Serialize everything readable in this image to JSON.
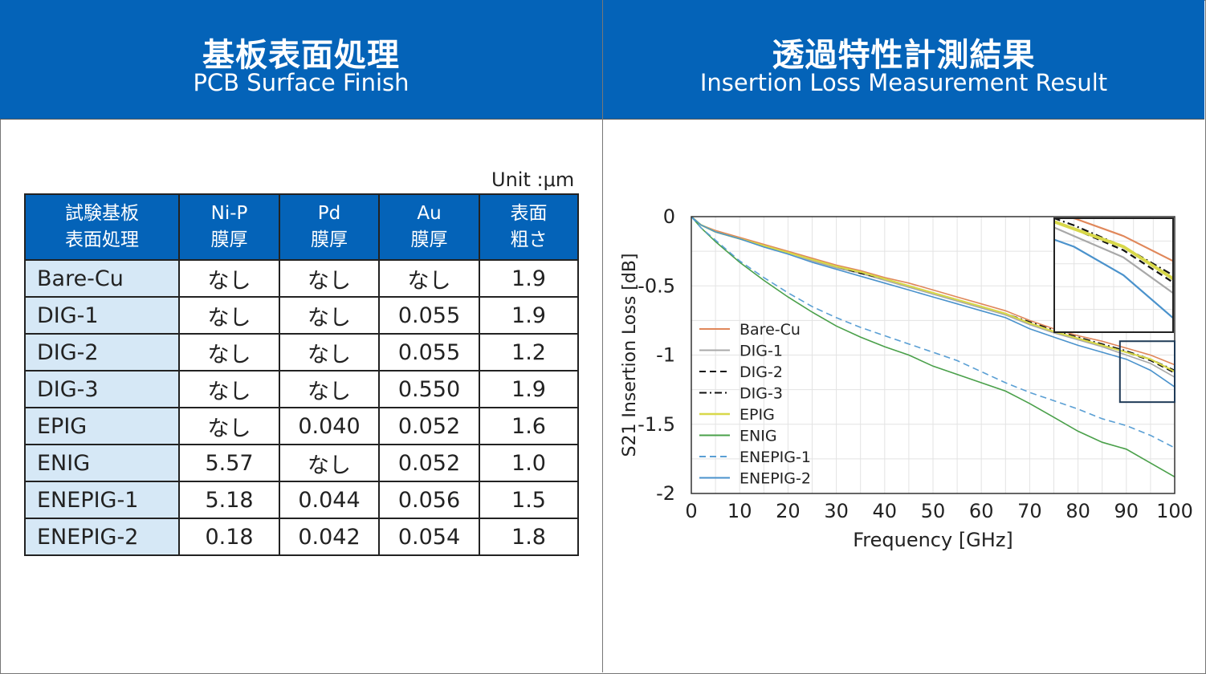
{
  "left_panel": {
    "title_jp": "基板表面処理",
    "title_en": "PCB Surface Finish",
    "unit": "Unit :μm",
    "table": {
      "headers": [
        "試験基板\n表面処理",
        "Ni-P\n膜厚",
        "Pd\n膜厚",
        "Au\n膜厚",
        "表面\n粗さ"
      ],
      "rows": [
        [
          "Bare-Cu",
          "なし",
          "なし",
          "なし",
          "1.9"
        ],
        [
          "DIG-1",
          "なし",
          "なし",
          "0.055",
          "1.9"
        ],
        [
          "DIG-2",
          "なし",
          "なし",
          "0.055",
          "1.2"
        ],
        [
          "DIG-3",
          "なし",
          "なし",
          "0.550",
          "1.9"
        ],
        [
          "EPIG",
          "なし",
          "0.040",
          "0.052",
          "1.6"
        ],
        [
          "ENIG",
          "5.57",
          "なし",
          "0.052",
          "1.0"
        ],
        [
          "ENEPIG-1",
          "5.18",
          "0.044",
          "0.056",
          "1.5"
        ],
        [
          "ENEPIG-2",
          "0.18",
          "0.042",
          "0.054",
          "1.8"
        ]
      ]
    }
  },
  "right_panel": {
    "title_jp": "透過特性計測結果",
    "title_en": "Insertion Loss Measurement Result"
  },
  "chart_data": [
    {
      "type": "table",
      "title": "",
      "columns": [
        "試験基板 表面処理",
        "Ni-P 膜厚",
        "Pd 膜厚",
        "Au 膜厚",
        "表面 粗さ"
      ],
      "rows": [
        [
          "Bare-Cu",
          "なし",
          "なし",
          "なし",
          "1.9"
        ],
        [
          "DIG-1",
          "なし",
          "なし",
          "0.055",
          "1.9"
        ],
        [
          "DIG-2",
          "なし",
          "なし",
          "0.055",
          "1.2"
        ],
        [
          "DIG-3",
          "なし",
          "なし",
          "0.550",
          "1.9"
        ],
        [
          "EPIG",
          "なし",
          "0.040",
          "0.052",
          "1.6"
        ],
        [
          "ENIG",
          "5.57",
          "なし",
          "0.052",
          "1.0"
        ],
        [
          "ENEPIG-1",
          "5.18",
          "0.044",
          "0.056",
          "1.5"
        ],
        [
          "ENEPIG-2",
          "0.18",
          "0.042",
          "0.054",
          "1.8"
        ]
      ]
    },
    {
      "type": "line",
      "title": "",
      "xlabel": "Frequency [GHz]",
      "ylabel": "S21 Insertion Loss [dB]",
      "xlim": [
        0,
        100
      ],
      "ylim": [
        -2,
        0
      ],
      "xticks": [
        0,
        10,
        20,
        30,
        40,
        50,
        60,
        70,
        80,
        90,
        100
      ],
      "yticks": [
        0,
        -0.5,
        -1,
        -1.5,
        -2
      ],
      "ytick_labels": [
        "0",
        "-0.5",
        "-1",
        "-1.5",
        "-2"
      ],
      "grid": true,
      "legend_position": "left",
      "x": [
        0,
        1,
        2,
        5,
        10,
        15,
        20,
        25,
        30,
        35,
        40,
        45,
        50,
        55,
        60,
        65,
        70,
        75,
        80,
        85,
        90,
        95,
        100
      ],
      "series": [
        {
          "name": "Bare-Cu",
          "color": "#e0875a",
          "dash": "solid",
          "values": [
            0,
            -0.03,
            -0.06,
            -0.1,
            -0.15,
            -0.2,
            -0.25,
            -0.3,
            -0.35,
            -0.39,
            -0.44,
            -0.48,
            -0.53,
            -0.58,
            -0.63,
            -0.68,
            -0.75,
            -0.81,
            -0.86,
            -0.9,
            -0.95,
            -1.0,
            -1.07
          ]
        },
        {
          "name": "DIG-1",
          "color": "#a8a8a8",
          "dash": "solid",
          "values": [
            0,
            -0.03,
            -0.06,
            -0.11,
            -0.16,
            -0.21,
            -0.26,
            -0.32,
            -0.37,
            -0.41,
            -0.46,
            -0.51,
            -0.56,
            -0.61,
            -0.66,
            -0.71,
            -0.78,
            -0.84,
            -0.89,
            -0.94,
            -1.0,
            -1.06,
            -1.16
          ]
        },
        {
          "name": "DIG-2",
          "color": "#111111",
          "dash": "dash",
          "values": [
            0,
            -0.03,
            -0.06,
            -0.11,
            -0.16,
            -0.21,
            -0.26,
            -0.31,
            -0.36,
            -0.41,
            -0.45,
            -0.5,
            -0.55,
            -0.6,
            -0.65,
            -0.7,
            -0.77,
            -0.83,
            -0.88,
            -0.93,
            -0.98,
            -1.04,
            -1.13
          ]
        },
        {
          "name": "DIG-3",
          "color": "#111111",
          "dash": "dashdot",
          "values": [
            0,
            -0.03,
            -0.06,
            -0.11,
            -0.16,
            -0.21,
            -0.26,
            -0.31,
            -0.36,
            -0.4,
            -0.45,
            -0.5,
            -0.55,
            -0.6,
            -0.65,
            -0.7,
            -0.76,
            -0.82,
            -0.87,
            -0.92,
            -0.97,
            -1.03,
            -1.11
          ]
        },
        {
          "name": "EPIG",
          "color": "#d8d84a",
          "dash": "solid",
          "values": [
            0,
            -0.03,
            -0.06,
            -0.11,
            -0.16,
            -0.21,
            -0.26,
            -0.31,
            -0.36,
            -0.4,
            -0.45,
            -0.5,
            -0.55,
            -0.6,
            -0.65,
            -0.7,
            -0.77,
            -0.83,
            -0.88,
            -0.93,
            -0.98,
            -1.03,
            -1.12
          ]
        },
        {
          "name": "ENIG",
          "color": "#4aa04a",
          "dash": "solid",
          "values": [
            0,
            -0.04,
            -0.08,
            -0.18,
            -0.33,
            -0.46,
            -0.58,
            -0.69,
            -0.79,
            -0.87,
            -0.94,
            -1.0,
            -1.08,
            -1.14,
            -1.2,
            -1.26,
            -1.35,
            -1.45,
            -1.55,
            -1.63,
            -1.68,
            -1.78,
            -1.88
          ]
        },
        {
          "name": "ENEPIG-1",
          "color": "#5a9fd4",
          "dash": "dash",
          "values": [
            0,
            -0.04,
            -0.08,
            -0.17,
            -0.32,
            -0.44,
            -0.55,
            -0.65,
            -0.73,
            -0.8,
            -0.86,
            -0.92,
            -0.98,
            -1.04,
            -1.12,
            -1.2,
            -1.27,
            -1.33,
            -1.39,
            -1.46,
            -1.51,
            -1.58,
            -1.67
          ]
        },
        {
          "name": "ENEPIG-2",
          "color": "#4a92cc",
          "dash": "solid",
          "values": [
            0,
            -0.03,
            -0.06,
            -0.11,
            -0.16,
            -0.22,
            -0.27,
            -0.33,
            -0.38,
            -0.43,
            -0.48,
            -0.53,
            -0.58,
            -0.63,
            -0.68,
            -0.73,
            -0.81,
            -0.87,
            -0.93,
            -0.98,
            -1.03,
            -1.11,
            -1.23
          ]
        }
      ]
    }
  ]
}
